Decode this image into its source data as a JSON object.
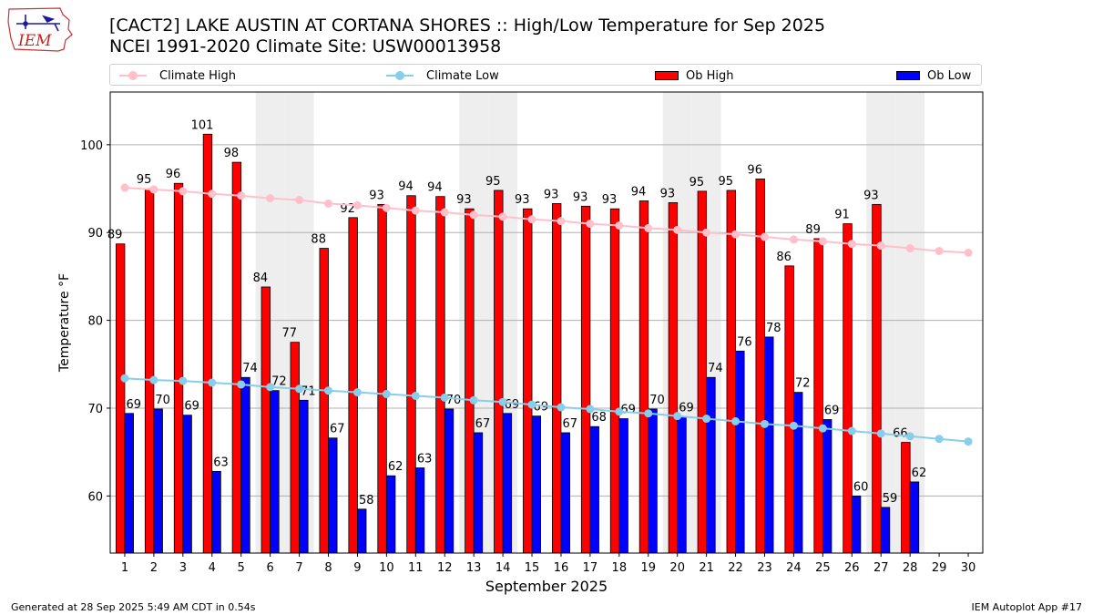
{
  "header": {
    "title_line1": "[CACT2] LAKE AUSTIN AT CORTANA SHORES :: High/Low Temperature for Sep 2025",
    "title_line2": "NCEI 1991-2020 Climate Site: USW00013958",
    "logo_text": "IEM"
  },
  "legend": {
    "climate_high": "Climate High",
    "climate_low": "Climate Low",
    "ob_high": "Ob High",
    "ob_low": "Ob Low"
  },
  "colors": {
    "ob_high": "#ff0000",
    "ob_low": "#0000ff",
    "climate_high": "#ffc0cb",
    "climate_low": "#87ceeb",
    "weekend_band": "#eeeeee",
    "grid": "#b0b0b0"
  },
  "footer": {
    "generated": "Generated at 28 Sep 2025 5:49 AM CDT in 0.54s",
    "app": "IEM Autoplot App #17"
  },
  "chart_data": {
    "type": "bar",
    "title": "[CACT2] LAKE AUSTIN AT CORTANA SHORES :: High/Low Temperature for Sep 2025",
    "xlabel": "September 2025",
    "ylabel": "Temperature °F",
    "x": [
      1,
      2,
      3,
      4,
      5,
      6,
      7,
      8,
      9,
      10,
      11,
      12,
      13,
      14,
      15,
      16,
      17,
      18,
      19,
      20,
      21,
      22,
      23,
      24,
      25,
      26,
      27,
      28,
      29,
      30
    ],
    "xlim": [
      0.5,
      30.5
    ],
    "ylim": [
      53.5,
      106
    ],
    "yticks": [
      60,
      70,
      80,
      90,
      100
    ],
    "grid": true,
    "weekend_days": [
      6,
      7,
      13,
      14,
      20,
      21,
      27,
      28
    ],
    "series": [
      {
        "name": "Ob High",
        "kind": "bar",
        "values": [
          88.7,
          95,
          95.6,
          101.2,
          98,
          83.8,
          77.5,
          88.2,
          91.7,
          93.2,
          94.2,
          94.1,
          92.7,
          94.8,
          92.7,
          93.3,
          93,
          92.7,
          93.6,
          93.4,
          94.7,
          94.8,
          96.1,
          86.2,
          89.3,
          91,
          93.2,
          66.1,
          null,
          null
        ],
        "labels": [
          "89",
          "95",
          "96",
          "101",
          "98",
          "84",
          "77",
          "88",
          "92",
          "93",
          "94",
          "94",
          "93",
          "95",
          "93",
          "93",
          "93",
          "93",
          "94",
          "93",
          "95",
          "95",
          "96",
          "86",
          "89",
          "91",
          "93",
          "66",
          "",
          ""
        ]
      },
      {
        "name": "Ob Low",
        "kind": "bar",
        "values": [
          69.4,
          69.9,
          69.2,
          62.8,
          73.5,
          72,
          70.9,
          66.6,
          58.5,
          62.3,
          63.2,
          69.9,
          67.2,
          69.4,
          69.1,
          67.2,
          67.9,
          68.8,
          69.9,
          69,
          73.5,
          76.5,
          78.1,
          71.8,
          68.7,
          60,
          58.7,
          61.6,
          null,
          null
        ],
        "labels": [
          "69",
          "70",
          "69",
          "63",
          "74",
          "72",
          "71",
          "67",
          "58",
          "62",
          "63",
          "70",
          "67",
          "69",
          "69",
          "67",
          "68",
          "69",
          "70",
          "69",
          "74",
          "76",
          "78",
          "72",
          "69",
          "60",
          "59",
          "62",
          "",
          ""
        ]
      },
      {
        "name": "Climate High",
        "kind": "line",
        "values": [
          95.1,
          94.9,
          94.7,
          94.4,
          94.2,
          93.9,
          93.7,
          93.3,
          93.1,
          92.8,
          92.5,
          92.3,
          92,
          91.8,
          91.5,
          91.3,
          91,
          90.8,
          90.5,
          90.3,
          90,
          89.8,
          89.5,
          89.2,
          89,
          88.7,
          88.5,
          88.2,
          87.9,
          87.7
        ]
      },
      {
        "name": "Climate Low",
        "kind": "line",
        "values": [
          73.4,
          73.2,
          73.1,
          72.9,
          72.7,
          72.4,
          72.2,
          72,
          71.8,
          71.6,
          71.4,
          71.2,
          70.9,
          70.7,
          70.4,
          70.1,
          69.9,
          69.6,
          69.4,
          69.1,
          68.8,
          68.5,
          68.2,
          68,
          67.7,
          67.4,
          67.1,
          66.8,
          66.5,
          66.2
        ]
      }
    ]
  }
}
